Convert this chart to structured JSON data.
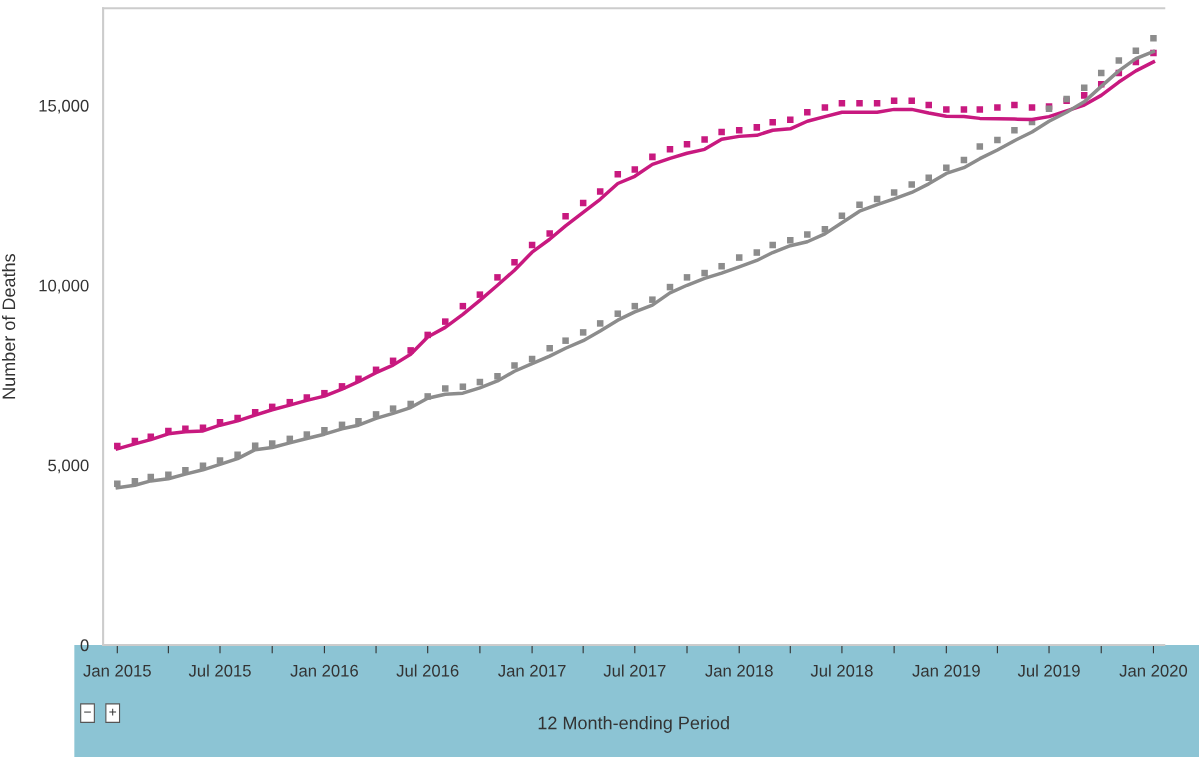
{
  "chart_data": {
    "type": "line",
    "xlabel": "12 Month-ending Period",
    "ylabel": "Number of Deaths",
    "x": [
      "2015-01",
      "2015-02",
      "2015-03",
      "2015-04",
      "2015-05",
      "2015-06",
      "2015-07",
      "2015-08",
      "2015-09",
      "2015-10",
      "2015-11",
      "2015-12",
      "2016-01",
      "2016-02",
      "2016-03",
      "2016-04",
      "2016-05",
      "2016-06",
      "2016-07",
      "2016-08",
      "2016-09",
      "2016-10",
      "2016-11",
      "2016-12",
      "2017-01",
      "2017-02",
      "2017-03",
      "2017-04",
      "2017-05",
      "2017-06",
      "2017-07",
      "2017-08",
      "2017-09",
      "2017-10",
      "2017-11",
      "2017-12",
      "2018-01",
      "2018-02",
      "2018-03",
      "2018-04",
      "2018-05",
      "2018-06",
      "2018-07",
      "2018-08",
      "2018-09",
      "2018-10",
      "2018-11",
      "2018-12",
      "2019-01",
      "2019-02",
      "2019-03",
      "2019-04",
      "2019-05",
      "2019-06",
      "2019-07",
      "2019-08",
      "2019-09",
      "2019-10",
      "2019-11",
      "2019-12",
      "2020-01"
    ],
    "series": [
      {
        "color": "#c8197f",
        "marker": "none",
        "line_style": "solid",
        "values": [
          5450,
          5590,
          5710,
          5870,
          5930,
          5950,
          6110,
          6230,
          6390,
          6540,
          6670,
          6800,
          6920,
          7110,
          7320,
          7570,
          7780,
          8080,
          8560,
          8830,
          9190,
          9580,
          10000,
          10420,
          10920,
          11280,
          11650,
          12030,
          12390,
          12830,
          13030,
          13360,
          13530,
          13670,
          13780,
          14060,
          14140,
          14170,
          14310,
          14350,
          14560,
          14690,
          14810,
          14810,
          14810,
          14890,
          14890,
          14790,
          14700,
          14690,
          14640,
          14630,
          14620,
          14610,
          14690,
          14850,
          15010,
          15280,
          15650,
          15960,
          16210
        ]
      },
      {
        "color": "#8c8c8c",
        "marker": "none",
        "line_style": "solid",
        "values": [
          4370,
          4440,
          4560,
          4620,
          4750,
          4870,
          5020,
          5180,
          5430,
          5490,
          5620,
          5740,
          5860,
          6010,
          6110,
          6300,
          6440,
          6600,
          6860,
          6970,
          7000,
          7150,
          7340,
          7610,
          7820,
          8030,
          8250,
          8460,
          8730,
          9030,
          9260,
          9450,
          9790,
          10000,
          10190,
          10340,
          10510,
          10690,
          10910,
          11100,
          11210,
          11430,
          11740,
          12060,
          12240,
          12400,
          12580,
          12820,
          13110,
          13270,
          13520,
          13760,
          14020,
          14260,
          14560,
          14810,
          15100,
          15530,
          15960,
          16300,
          16500
        ]
      },
      {
        "type": "scatter",
        "color": "#c8197f",
        "marker": "square",
        "values": [
          5530,
          5670,
          5790,
          5950,
          6010,
          6040,
          6190,
          6310,
          6470,
          6620,
          6750,
          6880,
          7000,
          7190,
          7400,
          7650,
          7900,
          8190,
          8620,
          8990,
          9420,
          9740,
          10220,
          10640,
          11120,
          11440,
          11920,
          12290,
          12610,
          13090,
          13220,
          13570,
          13780,
          13920,
          14050,
          14260,
          14310,
          14390,
          14530,
          14600,
          14810,
          14940,
          15060,
          15060,
          15060,
          15130,
          15130,
          15010,
          14890,
          14890,
          14890,
          14940,
          15010,
          14940,
          14970,
          15130,
          15280,
          15590,
          15900,
          16210,
          16460
        ]
      },
      {
        "type": "scatter",
        "color": "#8c8c8c",
        "marker": "square",
        "values": [
          4480,
          4550,
          4670,
          4730,
          4860,
          4980,
          5130,
          5290,
          5540,
          5600,
          5730,
          5850,
          5970,
          6120,
          6220,
          6410,
          6570,
          6700,
          6910,
          7130,
          7180,
          7310,
          7470,
          7770,
          7950,
          8250,
          8460,
          8690,
          8940,
          9210,
          9420,
          9600,
          9950,
          10220,
          10340,
          10530,
          10770,
          10910,
          11120,
          11250,
          11410,
          11560,
          11930,
          12240,
          12400,
          12580,
          12800,
          12990,
          13270,
          13480,
          13860,
          14040,
          14310,
          14540,
          14910,
          15180,
          15490,
          15900,
          16250,
          16520,
          16870
        ]
      }
    ],
    "xlim": [
      "2014-12-07",
      "2020-01-20"
    ],
    "xticks": [
      {
        "value": "2015-01",
        "label": "Jan 2015"
      },
      {
        "value": "2015-04",
        "label": null
      },
      {
        "value": "2015-07",
        "label": "Jul 2015"
      },
      {
        "value": "2015-10",
        "label": null
      },
      {
        "value": "2016-01",
        "label": "Jan 2016"
      },
      {
        "value": "2016-04",
        "label": null
      },
      {
        "value": "2016-07",
        "label": "Jul 2016"
      },
      {
        "value": "2016-10",
        "label": null
      },
      {
        "value": "2017-01",
        "label": "Jan 2017"
      },
      {
        "value": "2017-04",
        "label": null
      },
      {
        "value": "2017-07",
        "label": "Jul 2017"
      },
      {
        "value": "2017-10",
        "label": null
      },
      {
        "value": "2018-01",
        "label": "Jan 2018"
      },
      {
        "value": "2018-04",
        "label": null
      },
      {
        "value": "2018-07",
        "label": "Jul 2018"
      },
      {
        "value": "2018-10",
        "label": null
      },
      {
        "value": "2019-01",
        "label": "Jan 2019"
      },
      {
        "value": "2019-04",
        "label": null
      },
      {
        "value": "2019-07",
        "label": "Jul 2019"
      },
      {
        "value": "2019-10",
        "label": null
      },
      {
        "value": "2020-01",
        "label": "Jan 2020"
      }
    ],
    "ylim": [
      0,
      17700
    ],
    "yticks": [
      0,
      {
        "value": 5000,
        "label": "5,000"
      },
      {
        "value": 10000,
        "label": "10,000"
      },
      {
        "value": 15000,
        "label": "15,000"
      }
    ],
    "grid": false,
    "legend": false,
    "annotations": [
      "−",
      "+"
    ]
  }
}
